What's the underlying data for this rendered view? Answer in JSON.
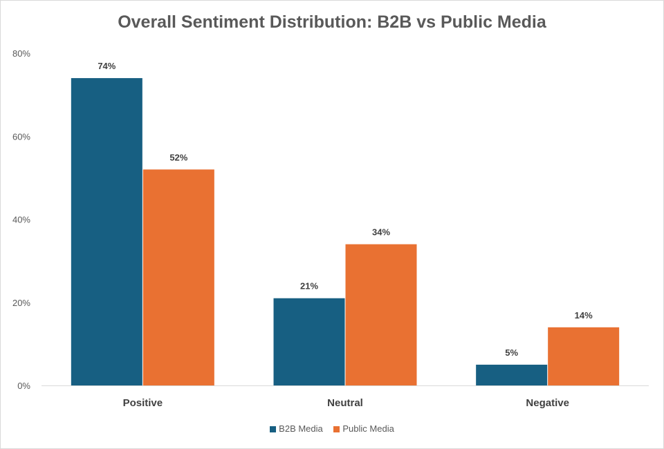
{
  "chart_data": {
    "type": "bar",
    "title": "Overall Sentiment Distribution: B2B vs Public Media",
    "categories": [
      "Positive",
      "Neutral",
      "Negative"
    ],
    "series": [
      {
        "name": "B2B Media",
        "color": "#175f82",
        "values": [
          74,
          21,
          5
        ],
        "labels": [
          "74%",
          "21%",
          "5%"
        ]
      },
      {
        "name": "Public Media",
        "color": "#e97132",
        "values": [
          52,
          34,
          14
        ],
        "labels": [
          "52%",
          "34%",
          "14%"
        ]
      }
    ],
    "yticks": [
      "0%",
      "20%",
      "40%",
      "60%",
      "80%"
    ],
    "ylim": [
      0,
      80
    ],
    "xlabel": "",
    "ylabel": "",
    "grid": false,
    "legend": "bottom"
  }
}
